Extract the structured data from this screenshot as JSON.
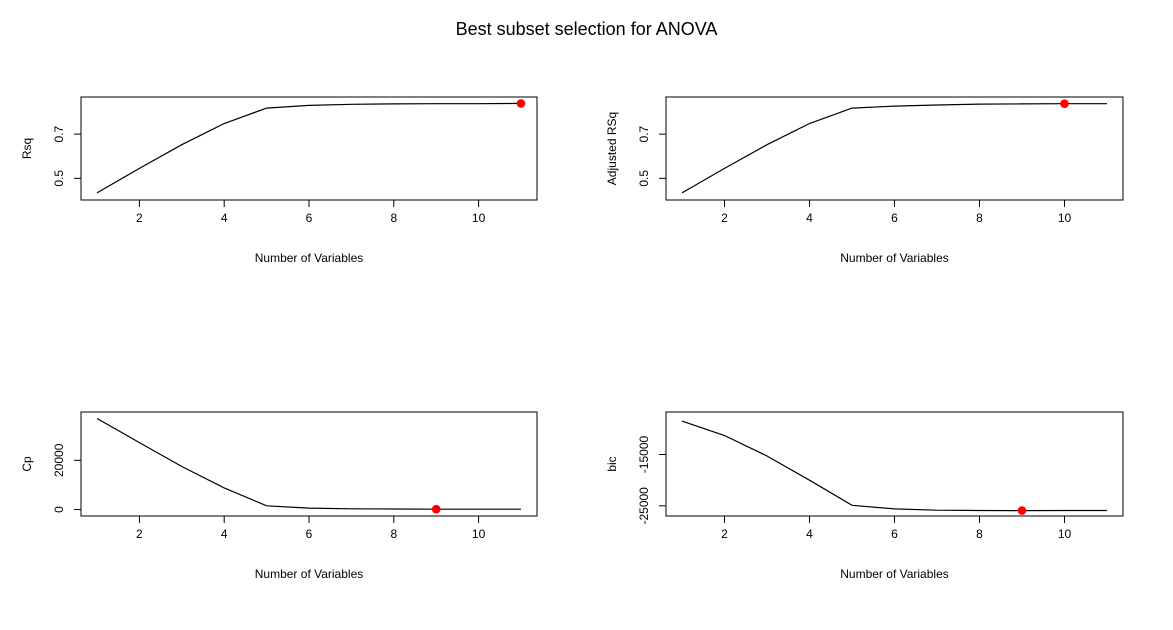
{
  "title": "Best subset selection for ANOVA",
  "chart_data": [
    {
      "type": "line",
      "xlabel": "Number of Variables",
      "ylabel": "Rsq",
      "xlim": [
        1,
        11
      ],
      "ylim": [
        0.42,
        0.85
      ],
      "x_ticks": [
        2,
        4,
        6,
        8,
        10
      ],
      "y_ticks": [
        0.5,
        0.7
      ],
      "y_tick_labels": [
        "0.5",
        "0.7"
      ],
      "x": [
        1,
        2,
        3,
        4,
        5,
        6,
        7,
        8,
        9,
        10,
        11
      ],
      "y": [
        0.434,
        0.545,
        0.652,
        0.748,
        0.818,
        0.83,
        0.835,
        0.837,
        0.838,
        0.838,
        0.839
      ],
      "highlight": {
        "x": 11,
        "y": 0.839,
        "color": "#ff0000"
      },
      "grid": false
    },
    {
      "type": "line",
      "xlabel": "Number of Variables",
      "ylabel": "Adjusted RSq",
      "xlim": [
        1,
        11
      ],
      "ylim": [
        0.42,
        0.85
      ],
      "x_ticks": [
        2,
        4,
        6,
        8,
        10
      ],
      "y_ticks": [
        0.5,
        0.7
      ],
      "y_tick_labels": [
        "0.5",
        "0.7"
      ],
      "x": [
        1,
        2,
        3,
        4,
        5,
        6,
        7,
        8,
        9,
        10,
        11
      ],
      "y": [
        0.434,
        0.545,
        0.652,
        0.748,
        0.818,
        0.827,
        0.832,
        0.836,
        0.837,
        0.838,
        0.838
      ],
      "highlight": {
        "x": 10,
        "y": 0.838,
        "color": "#ff0000"
      },
      "grid": false
    },
    {
      "type": "line",
      "xlabel": "Number of Variables",
      "ylabel": "Cp",
      "xlim": [
        1,
        11
      ],
      "ylim": [
        -1000,
        38000
      ],
      "x_ticks": [
        2,
        4,
        6,
        8,
        10
      ],
      "y_ticks": [
        0,
        20000
      ],
      "y_tick_labels": [
        "0",
        "20000"
      ],
      "x": [
        1,
        2,
        3,
        4,
        5,
        6,
        7,
        8,
        9,
        10,
        11
      ],
      "y": [
        37000,
        27200,
        17500,
        8800,
        1500,
        600,
        300,
        200,
        150,
        150,
        150
      ],
      "highlight": {
        "x": 9,
        "y": 150,
        "color": "#ff0000"
      },
      "grid": false
    },
    {
      "type": "line",
      "xlabel": "Number of Variables",
      "ylabel": "bic",
      "xlim": [
        1,
        11
      ],
      "ylim": [
        -26200,
        -7500
      ],
      "x_ticks": [
        2,
        4,
        6,
        8,
        10
      ],
      "y_ticks": [
        -25000,
        -15000
      ],
      "y_tick_labels": [
        "-25000",
        "-15000"
      ],
      "x": [
        1,
        2,
        3,
        4,
        5,
        6,
        7,
        8,
        9,
        10,
        11
      ],
      "y": [
        -8500,
        -11300,
        -15300,
        -20000,
        -24900,
        -25600,
        -25850,
        -25900,
        -25920,
        -25910,
        -25900
      ],
      "highlight": {
        "x": 9,
        "y": -25920,
        "color": "#ff0000"
      },
      "grid": false
    }
  ]
}
